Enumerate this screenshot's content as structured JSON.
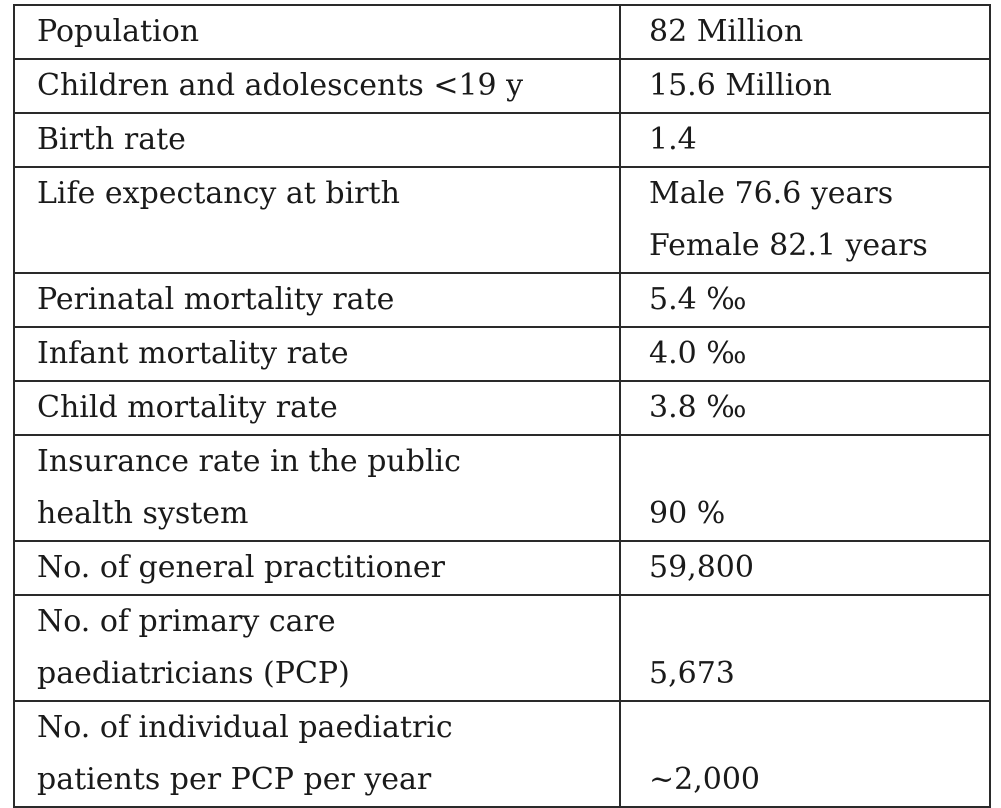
{
  "table": {
    "rows": [
      {
        "label": [
          "Population"
        ],
        "value": [
          "82 Million"
        ]
      },
      {
        "label": [
          "Children and adolescents <19 y"
        ],
        "value": [
          "15.6 Million"
        ]
      },
      {
        "label": [
          "Birth rate"
        ],
        "value": [
          "1.4"
        ]
      },
      {
        "label": [
          "Life expectancy at birth"
        ],
        "value": [
          "Male 76.6 years",
          "Female 82.1 years"
        ]
      },
      {
        "label": [
          "Perinatal mortality rate"
        ],
        "value": [
          "5.4 ‰"
        ]
      },
      {
        "label": [
          "Infant mortality rate"
        ],
        "value": [
          "4.0 ‰"
        ]
      },
      {
        "label": [
          "Child mortality rate"
        ],
        "value": [
          "3.8 ‰"
        ]
      },
      {
        "label": [
          "Insurance rate in the public",
          "health system"
        ],
        "value": [
          "90 %"
        ]
      },
      {
        "label": [
          "No. of general practitioner"
        ],
        "value": [
          "59,800"
        ]
      },
      {
        "label": [
          "No. of primary care",
          "paediatricians (PCP)"
        ],
        "value": [
          "5,673"
        ]
      },
      {
        "label": [
          "No. of individual paediatric",
          "patients per PCP per year"
        ],
        "value": [
          "~2,000"
        ]
      }
    ]
  }
}
